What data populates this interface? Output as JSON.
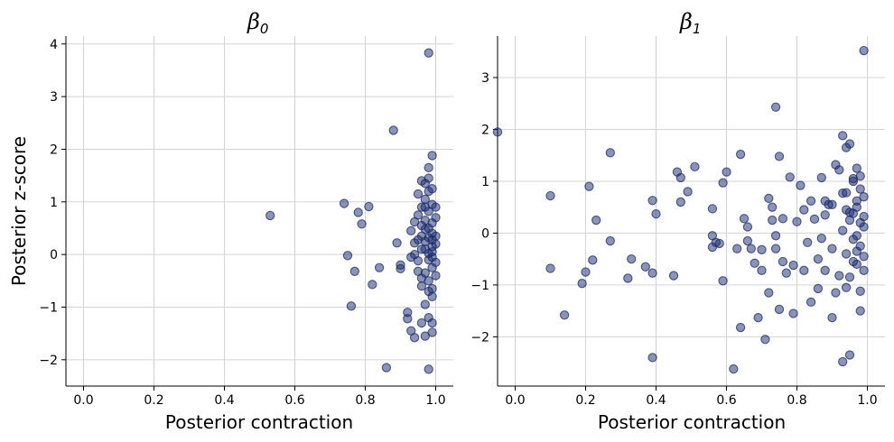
{
  "chart_data": [
    {
      "type": "scatter",
      "title": "β",
      "title_sub": "0",
      "xlabel": "Posterior contraction",
      "ylabel": "Posterior z-score",
      "xlim": [
        -0.05,
        1.05
      ],
      "ylim": [
        -2.5,
        4.15
      ],
      "xticks": [
        0.0,
        0.2,
        0.4,
        0.6,
        0.8,
        1.0
      ],
      "xtick_labels": [
        "0.0",
        "0.2",
        "0.4",
        "0.6",
        "0.8",
        "1.0"
      ],
      "yticks": [
        -2,
        -1,
        0,
        1,
        2,
        3,
        4
      ],
      "ytick_labels": [
        "−2",
        "−1",
        "0",
        "1",
        "2",
        "3",
        "4"
      ],
      "grid": true,
      "marker_color": "#1a2a6c",
      "points": [
        [
          0.53,
          0.74
        ],
        [
          0.74,
          0.97
        ],
        [
          0.75,
          -0.02
        ],
        [
          0.76,
          -0.98
        ],
        [
          0.77,
          -0.32
        ],
        [
          0.78,
          0.8
        ],
        [
          0.79,
          0.58
        ],
        [
          0.81,
          0.91
        ],
        [
          0.82,
          -0.57
        ],
        [
          0.84,
          -0.25
        ],
        [
          0.86,
          -2.15
        ],
        [
          0.88,
          2.36
        ],
        [
          0.89,
          0.22
        ],
        [
          0.9,
          -0.27
        ],
        [
          0.9,
          -0.2
        ],
        [
          0.92,
          -1.22
        ],
        [
          0.92,
          -1.1
        ],
        [
          0.93,
          -1.45
        ],
        [
          0.93,
          0.45
        ],
        [
          0.94,
          0.22
        ],
        [
          0.94,
          -1.58
        ],
        [
          0.94,
          0.62
        ],
        [
          0.95,
          -0.32
        ],
        [
          0.95,
          0.28
        ],
        [
          0.96,
          -0.6
        ],
        [
          0.96,
          0.9
        ],
        [
          0.97,
          1.35
        ],
        [
          0.97,
          -1.55
        ],
        [
          0.97,
          0.1
        ],
        [
          0.98,
          1.65
        ],
        [
          0.98,
          -2.18
        ],
        [
          0.98,
          3.83
        ],
        [
          0.98,
          1.45
        ],
        [
          0.99,
          0.4
        ],
        [
          0.99,
          -0.8
        ],
        [
          0.99,
          1.88
        ],
        [
          0.99,
          1.25
        ],
        [
          0.99,
          0.05
        ],
        [
          0.99,
          -1.48
        ],
        [
          0.99,
          -1.3
        ],
        [
          1.0,
          0.2
        ],
        [
          1.0,
          -0.4
        ],
        [
          1.0,
          0.7
        ],
        [
          1.0,
          -0.15
        ],
        [
          1.0,
          0.9
        ],
        [
          0.97,
          0.65
        ],
        [
          0.96,
          0.35
        ],
        [
          0.98,
          0.5
        ],
        [
          0.98,
          -0.1
        ],
        [
          0.97,
          -0.35
        ],
        [
          0.99,
          0.15
        ],
        [
          0.98,
          0.32
        ],
        [
          0.96,
          0.1
        ],
        [
          0.99,
          -0.65
        ],
        [
          0.97,
          0.9
        ],
        [
          0.98,
          0.82
        ],
        [
          0.95,
          1.15
        ],
        [
          0.96,
          1.4
        ],
        [
          0.94,
          0.0
        ],
        [
          0.95,
          -0.12
        ],
        [
          0.97,
          -0.95
        ],
        [
          0.98,
          -1.2
        ],
        [
          0.96,
          -1.3
        ],
        [
          0.99,
          0.6
        ],
        [
          0.98,
          -0.5
        ],
        [
          0.99,
          -0.25
        ],
        [
          0.97,
          0.48
        ],
        [
          0.98,
          0.02
        ],
        [
          1.0,
          0.35
        ],
        [
          0.99,
          0.95
        ],
        [
          0.96,
          -0.45
        ],
        [
          0.95,
          0.75
        ],
        [
          0.93,
          -0.05
        ],
        [
          0.97,
          1.05
        ],
        [
          0.98,
          1.2
        ],
        [
          0.99,
          -0.05
        ],
        [
          0.97,
          0.25
        ],
        [
          0.96,
          0.55
        ],
        [
          0.98,
          -0.7
        ],
        [
          0.99,
          0.28
        ]
      ]
    },
    {
      "type": "scatter",
      "title": "β",
      "title_sub": "1",
      "xlabel": "Posterior contraction",
      "ylabel": "",
      "xlim": [
        -0.05,
        1.05
      ],
      "ylim": [
        -2.95,
        3.8
      ],
      "xticks": [
        0.0,
        0.2,
        0.4,
        0.6,
        0.8,
        1.0
      ],
      "xtick_labels": [
        "0.0",
        "0.2",
        "0.4",
        "0.6",
        "0.8",
        "1.0"
      ],
      "yticks": [
        -2,
        -1,
        0,
        1,
        2,
        3
      ],
      "ytick_labels": [
        "−2",
        "−1",
        "0",
        "1",
        "2",
        "3"
      ],
      "grid": true,
      "marker_color": "#1a2a6c",
      "points": [
        [
          -0.05,
          1.95
        ],
        [
          0.1,
          0.72
        ],
        [
          0.1,
          -0.68
        ],
        [
          0.14,
          -1.58
        ],
        [
          0.19,
          -0.97
        ],
        [
          0.2,
          -0.75
        ],
        [
          0.21,
          0.9
        ],
        [
          0.22,
          -0.52
        ],
        [
          0.23,
          0.25
        ],
        [
          0.27,
          1.55
        ],
        [
          0.27,
          -0.15
        ],
        [
          0.32,
          -0.87
        ],
        [
          0.33,
          -0.5
        ],
        [
          0.37,
          -0.65
        ],
        [
          0.39,
          -0.77
        ],
        [
          0.39,
          -2.4
        ],
        [
          0.39,
          0.63
        ],
        [
          0.4,
          0.37
        ],
        [
          0.45,
          -0.82
        ],
        [
          0.46,
          1.18
        ],
        [
          0.47,
          0.6
        ],
        [
          0.47,
          1.07
        ],
        [
          0.49,
          0.8
        ],
        [
          0.51,
          1.28
        ],
        [
          0.56,
          0.47
        ],
        [
          0.56,
          -0.05
        ],
        [
          0.56,
          -0.27
        ],
        [
          0.57,
          -0.18
        ],
        [
          0.58,
          -0.2
        ],
        [
          0.59,
          0.97
        ],
        [
          0.59,
          -0.92
        ],
        [
          0.6,
          1.18
        ],
        [
          0.62,
          -2.62
        ],
        [
          0.63,
          -0.3
        ],
        [
          0.64,
          -1.82
        ],
        [
          0.64,
          1.52
        ],
        [
          0.65,
          0.28
        ],
        [
          0.66,
          0.12
        ],
        [
          0.66,
          -0.15
        ],
        [
          0.67,
          -0.3
        ],
        [
          0.68,
          -0.58
        ],
        [
          0.69,
          -1.63
        ],
        [
          0.7,
          -0.72
        ],
        [
          0.7,
          -0.32
        ],
        [
          0.71,
          -2.05
        ],
        [
          0.72,
          0.67
        ],
        [
          0.72,
          -1.15
        ],
        [
          0.73,
          0.25
        ],
        [
          0.73,
          0.5
        ],
        [
          0.74,
          2.43
        ],
        [
          0.74,
          -0.05
        ],
        [
          0.74,
          -0.3
        ],
        [
          0.75,
          1.48
        ],
        [
          0.75,
          -1.47
        ],
        [
          0.76,
          0.28
        ],
        [
          0.76,
          -0.55
        ],
        [
          0.77,
          -0.77
        ],
        [
          0.78,
          1.08
        ],
        [
          0.79,
          -0.62
        ],
        [
          0.79,
          -1.55
        ],
        [
          0.8,
          0.22
        ],
        [
          0.81,
          0.92
        ],
        [
          0.82,
          -0.72
        ],
        [
          0.82,
          0.45
        ],
        [
          0.83,
          -0.18
        ],
        [
          0.84,
          0.62
        ],
        [
          0.84,
          -1.33
        ],
        [
          0.85,
          0.27
        ],
        [
          0.86,
          -0.5
        ],
        [
          0.86,
          -1.07
        ],
        [
          0.87,
          1.07
        ],
        [
          0.87,
          -0.1
        ],
        [
          0.88,
          0.35
        ],
        [
          0.88,
          -0.72
        ],
        [
          0.88,
          0.62
        ],
        [
          0.89,
          0.55
        ],
        [
          0.9,
          -0.3
        ],
        [
          0.9,
          0.55
        ],
        [
          0.9,
          -1.63
        ],
        [
          0.91,
          1.32
        ],
        [
          0.91,
          -1.15
        ],
        [
          0.92,
          1.22
        ],
        [
          0.92,
          -0.82
        ],
        [
          0.93,
          0.77
        ],
        [
          0.93,
          1.88
        ],
        [
          0.93,
          -2.48
        ],
        [
          0.94,
          1.65
        ],
        [
          0.94,
          0.45
        ],
        [
          0.94,
          -1.05
        ],
        [
          0.95,
          -2.35
        ],
        [
          0.95,
          1.72
        ],
        [
          0.95,
          0.25
        ],
        [
          0.96,
          1.0
        ],
        [
          0.96,
          -0.55
        ],
        [
          0.97,
          1.25
        ],
        [
          0.97,
          0.5
        ],
        [
          0.97,
          -0.35
        ],
        [
          0.98,
          0.85
        ],
        [
          0.98,
          -1.12
        ],
        [
          0.98,
          -1.5
        ],
        [
          0.99,
          3.52
        ],
        [
          0.99,
          0.12
        ],
        [
          0.99,
          -0.72
        ],
        [
          0.95,
          0.4
        ],
        [
          0.94,
          0.78
        ],
        [
          0.96,
          -0.12
        ],
        [
          0.97,
          0.62
        ],
        [
          0.98,
          -0.25
        ],
        [
          0.99,
          0.32
        ],
        [
          0.96,
          1.05
        ],
        [
          0.97,
          -0.6
        ],
        [
          0.98,
          0.2
        ],
        [
          0.99,
          -0.45
        ],
        [
          0.93,
          0.05
        ],
        [
          0.95,
          -0.85
        ],
        [
          0.96,
          0.38
        ],
        [
          0.98,
          1.1
        ],
        [
          0.99,
          0.7
        ],
        [
          0.97,
          -0.05
        ],
        [
          0.94,
          -0.4
        ]
      ]
    }
  ]
}
